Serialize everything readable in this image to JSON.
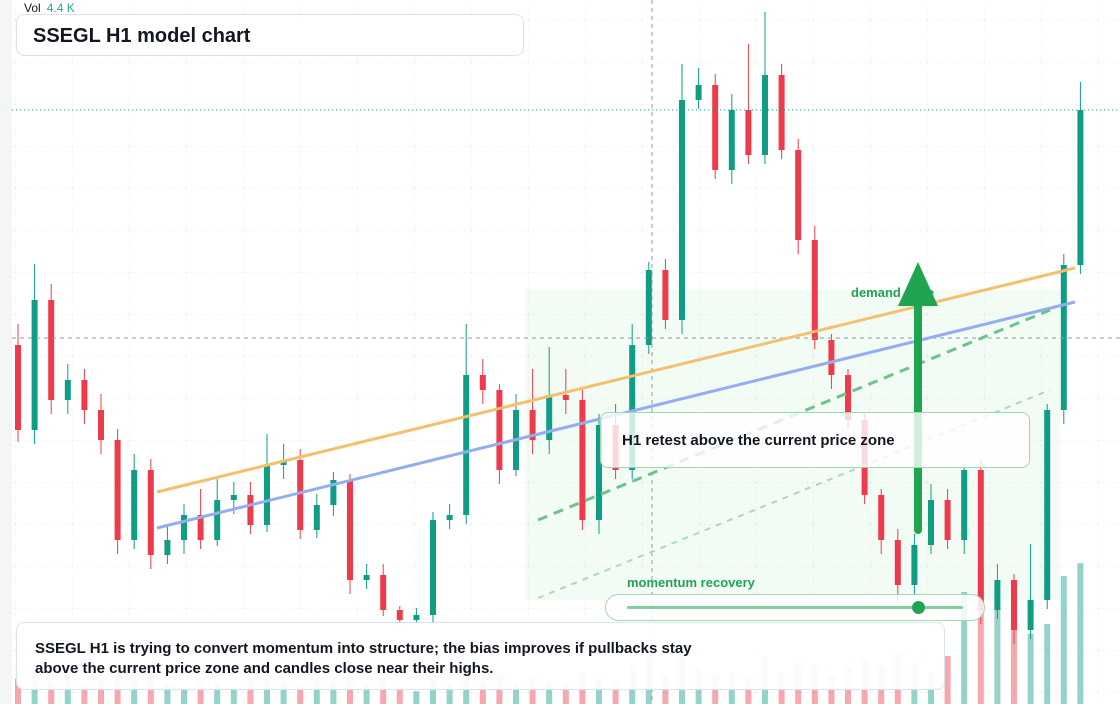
{
  "chart_data": {
    "type": "candlestick",
    "title": "SSEGL H1 model chart",
    "volume_name": "Vol",
    "last_volume": {
      "value": 4.4,
      "label": "4.4 K"
    },
    "ylim": [
      0,
      704
    ],
    "volume_ylim": [
      0,
      22
    ],
    "up_color": "#0f9d84",
    "down_color": "#ee3b4b",
    "open": [
      359,
      274,
      404,
      304,
      324,
      294,
      264,
      164,
      234,
      149,
      164,
      189,
      164,
      204,
      209,
      179,
      239,
      244,
      174,
      199,
      224,
      124,
      129,
      94,
      84,
      89,
      184,
      189,
      329,
      314,
      234,
      294,
      264,
      309,
      304,
      184,
      279,
      234,
      359,
      434,
      384,
      604,
      619,
      534,
      594,
      549,
      629,
      554,
      464,
      364,
      329,
      284,
      209,
      164,
      119,
      159,
      204,
      164,
      234,
      94,
      124,
      74,
      104,
      294,
      439
    ],
    "high": [
      380,
      440,
      420,
      340,
      335,
      310,
      275,
      250,
      245,
      180,
      200,
      215,
      225,
      222,
      222,
      270,
      260,
      255,
      210,
      232,
      230,
      140,
      140,
      98,
      96,
      192,
      200,
      380,
      345,
      320,
      310,
      335,
      357,
      335,
      315,
      290,
      300,
      380,
      442,
      445,
      640,
      636,
      630,
      610,
      660,
      692,
      640,
      565,
      478,
      370,
      335,
      290,
      215,
      175,
      170,
      220,
      215,
      240,
      245,
      140,
      130,
      160,
      300,
      450,
      622
    ],
    "low": [
      262,
      260,
      290,
      290,
      280,
      250,
      150,
      155,
      135,
      140,
      150,
      155,
      158,
      190,
      170,
      172,
      225,
      165,
      166,
      188,
      110,
      115,
      88,
      78,
      80,
      80,
      175,
      180,
      300,
      220,
      228,
      250,
      250,
      290,
      174,
      170,
      225,
      225,
      350,
      375,
      370,
      595,
      525,
      520,
      540,
      540,
      545,
      450,
      355,
      315,
      275,
      200,
      150,
      100,
      108,
      150,
      155,
      150,
      80,
      85,
      60,
      65,
      95,
      280,
      430
    ],
    "close": [
      274,
      404,
      304,
      324,
      294,
      264,
      164,
      234,
      149,
      164,
      189,
      164,
      204,
      209,
      179,
      239,
      244,
      174,
      199,
      224,
      124,
      129,
      94,
      84,
      89,
      184,
      189,
      329,
      314,
      234,
      294,
      264,
      309,
      304,
      184,
      279,
      234,
      359,
      434,
      384,
      604,
      619,
      534,
      594,
      549,
      629,
      554,
      464,
      364,
      329,
      284,
      209,
      164,
      119,
      159,
      204,
      164,
      234,
      94,
      124,
      74,
      104,
      294,
      439,
      594
    ],
    "volume": [
      0.8,
      1.2,
      0.7,
      0.9,
      0.6,
      0.8,
      1.0,
      0.7,
      0.9,
      0.6,
      0.5,
      0.7,
      0.6,
      0.5,
      0.8,
      0.9,
      0.7,
      0.6,
      0.8,
      0.7,
      1.1,
      0.6,
      0.8,
      0.5,
      0.4,
      0.9,
      0.6,
      1.3,
      0.7,
      0.9,
      0.6,
      0.8,
      0.7,
      0.6,
      1.0,
      0.8,
      0.7,
      1.2,
      1.4,
      0.9,
      1.6,
      1.1,
      0.9,
      1.0,
      0.8,
      1.5,
      1.0,
      1.3,
      1.2,
      0.9,
      1.1,
      1.4,
      1.2,
      1.6,
      1.3,
      1.0,
      1.5,
      3.5,
      4.2,
      3.0,
      2.8,
      2.2,
      2.5,
      4.0,
      4.4
    ],
    "annotations": {
      "zone": "demand zone",
      "retest": "H1 retest above the current price zone",
      "momentum": "momentum recovery"
    },
    "note": "SSEGL H1 is trying to convert momentum into structure; the bias improves if pullbacks stay above the current price zone and candles close near their highs."
  }
}
